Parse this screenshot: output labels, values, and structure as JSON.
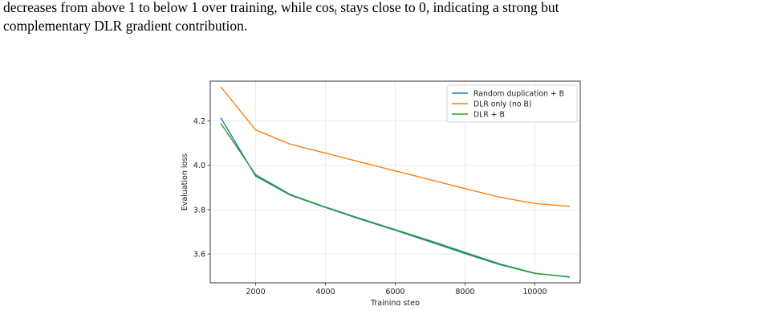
{
  "text": {
    "line1_a": "decreases from above 1 to below 1 over training, while cos",
    "line1_sub": "t",
    "line1_b": " stays close to 0, indicating a strong but",
    "line2": "complementary DLR gradient contribution.",
    "line3": "                           …"
  },
  "chart_data": {
    "type": "line",
    "xlabel": "Training step",
    "ylabel": "Evaluation loss",
    "xlim": [
      700,
      11300
    ],
    "ylim": [
      3.47,
      4.38
    ],
    "xticks": [
      2000,
      4000,
      6000,
      8000,
      10000
    ],
    "yticks": [
      3.6,
      3.8,
      4.0,
      4.2
    ],
    "xtick_labels": [
      "2000",
      "4000",
      "6000",
      "8000",
      "10000"
    ],
    "ytick_labels": [
      "3.6",
      "3.8",
      "4.0",
      "4.2"
    ],
    "grid": true,
    "legend_position": "top-right",
    "x": [
      1000,
      2000,
      3000,
      4000,
      5000,
      6000,
      7000,
      8000,
      9000,
      10000,
      11000
    ],
    "series": [
      {
        "name": "Random duplication + B",
        "color": "#1f77b4",
        "values": [
          4.215,
          3.952,
          3.865,
          3.81,
          3.757,
          3.707,
          3.655,
          3.602,
          3.552,
          3.512,
          3.497
        ]
      },
      {
        "name": "DLR only (no B)",
        "color": "#ff7f0e",
        "values": [
          4.355,
          4.16,
          4.095,
          4.055,
          4.015,
          3.975,
          3.935,
          3.895,
          3.856,
          3.828,
          3.815
        ]
      },
      {
        "name": "DLR + B",
        "color": "#2ca02c",
        "values": [
          4.19,
          3.958,
          3.868,
          3.812,
          3.76,
          3.71,
          3.66,
          3.607,
          3.555,
          3.513,
          3.495
        ]
      }
    ]
  }
}
